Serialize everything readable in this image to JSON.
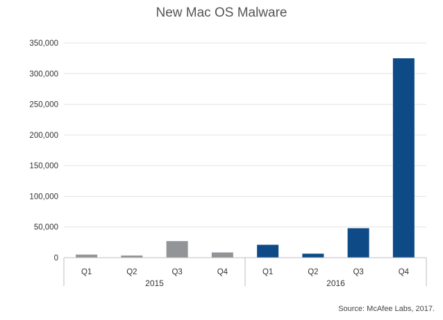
{
  "chart_data": {
    "type": "bar",
    "title": "New Mac OS Malware",
    "source": "Source: McAfee Labs, 2017.",
    "categories": [
      "Q1",
      "Q2",
      "Q3",
      "Q4",
      "Q1",
      "Q2",
      "Q3",
      "Q4"
    ],
    "groups": [
      {
        "label": "2015",
        "start": 0,
        "end": 3
      },
      {
        "label": "2016",
        "start": 4,
        "end": 7
      }
    ],
    "values": [
      5000,
      3500,
      27000,
      8500,
      21000,
      6500,
      48000,
      325000
    ],
    "bar_colors": [
      "#929497",
      "#929497",
      "#929497",
      "#929497",
      "#0d4a86",
      "#0d4a86",
      "#0d4a86",
      "#0d4a86"
    ],
    "yticks": [
      0,
      50000,
      100000,
      150000,
      200000,
      250000,
      300000,
      350000
    ],
    "ytick_labels": [
      "0",
      "50,000",
      "100,000",
      "150,000",
      "200,000",
      "250,000",
      "300,000",
      "350,000"
    ],
    "ylim": [
      0,
      350000
    ],
    "grid": true,
    "gridline_color": "#e3e3e3",
    "axis_color": "#bdbdbd",
    "title_color": "#555555"
  }
}
